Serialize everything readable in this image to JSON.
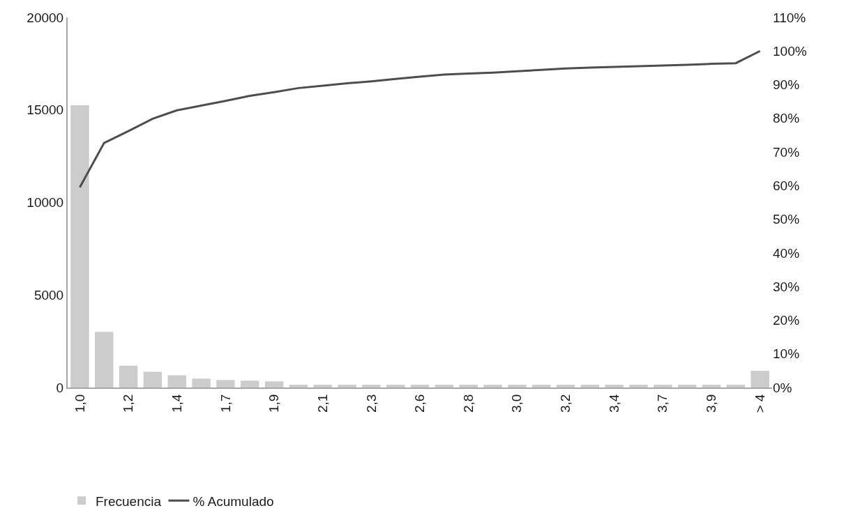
{
  "chart_data": {
    "type": "bar",
    "categories": [
      "1,0",
      null,
      "1,2",
      null,
      "1,4",
      null,
      "1,7",
      null,
      "1,9",
      null,
      "2,1",
      null,
      "2,3",
      null,
      "2,6",
      null,
      "2,8",
      null,
      "3,0",
      null,
      "3,2",
      null,
      "3,4",
      null,
      "3,7",
      null,
      "3,9",
      null,
      "> 4"
    ],
    "series": [
      {
        "name": "Frecuencia",
        "color": "#cccccc",
        "values": [
          15250,
          3000,
          1180,
          850,
          660,
          480,
          400,
          370,
          330,
          150,
          150,
          150,
          150,
          150,
          150,
          150,
          150,
          150,
          150,
          150,
          150,
          150,
          150,
          150,
          150,
          150,
          150,
          150,
          900
        ]
      },
      {
        "name": "% Acumulado",
        "type": "line",
        "axis": "y2",
        "color": "#4d4d4d",
        "values": [
          59.5,
          72.7,
          76.2,
          79.9,
          82.4,
          83.8,
          85.2,
          86.7,
          87.8,
          89.0,
          89.7,
          90.4,
          91.0,
          91.7,
          92.4,
          93.0,
          93.3,
          93.6,
          94.0,
          94.4,
          94.8,
          95.1,
          95.3,
          95.5,
          95.7,
          95.9,
          96.2,
          96.4,
          100
        ]
      }
    ],
    "ylim": [
      0,
      20000
    ],
    "yticks": [
      0,
      5000,
      10000,
      15000,
      20000
    ],
    "y2lim": [
      0,
      110
    ],
    "y2ticks": [
      {
        "value": 0,
        "label": "0%"
      },
      {
        "value": 10,
        "label": "10%"
      },
      {
        "value": 20,
        "label": "20%"
      },
      {
        "value": 30,
        "label": "30%"
      },
      {
        "value": 40,
        "label": "40%"
      },
      {
        "value": 50,
        "label": "50%"
      },
      {
        "value": 60,
        "label": "60%"
      },
      {
        "value": 70,
        "label": "70%"
      },
      {
        "value": 80,
        "label": "80%"
      },
      {
        "value": 90,
        "label": "90%"
      },
      {
        "value": 100,
        "label": "100%"
      },
      {
        "value": 110,
        "label": "110%"
      }
    ],
    "grid": false,
    "legend": "bottom left",
    "marker": "none",
    "line_style": "solid"
  }
}
